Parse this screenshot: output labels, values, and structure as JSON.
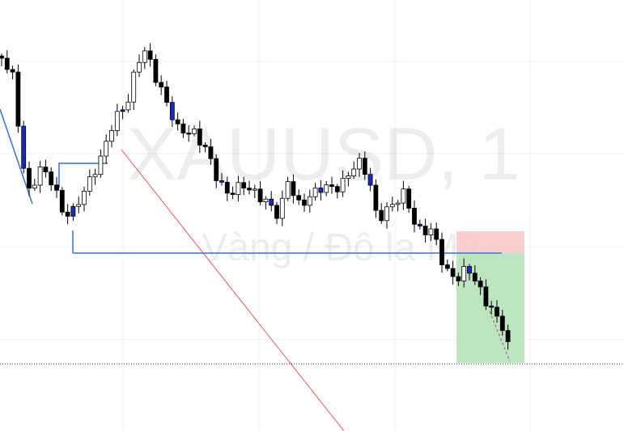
{
  "watermark": {
    "symbol": "XAUUSD, 1",
    "description": "Vàng / Đô la Mỹ"
  }
}
